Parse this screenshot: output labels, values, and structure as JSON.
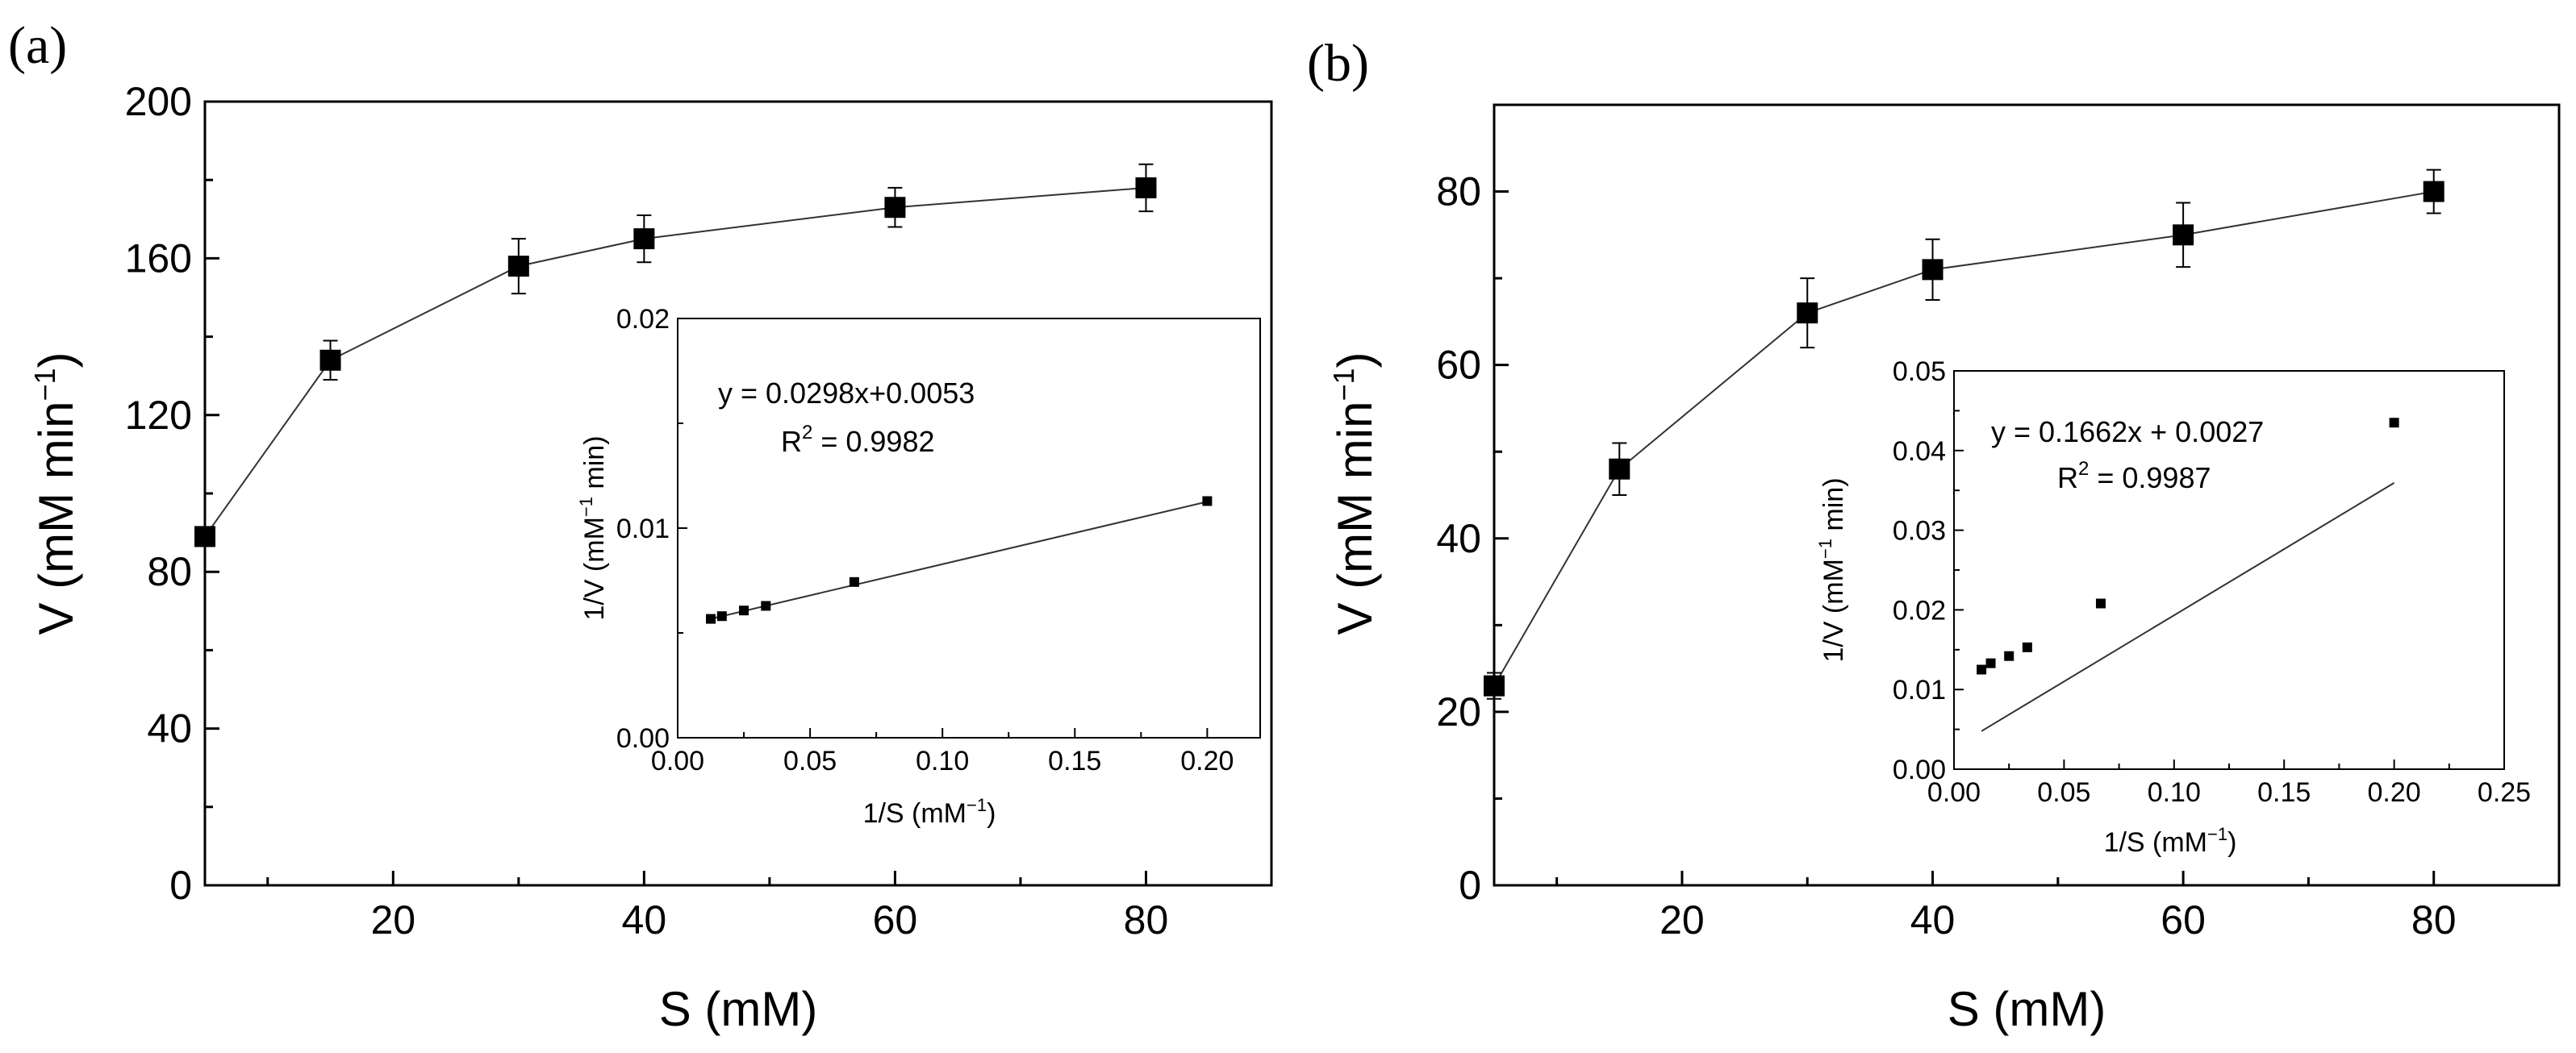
{
  "chart_data": [
    {
      "panel_label": "(a)",
      "type": "line",
      "xlabel": "S (mM)",
      "ylabel_main": "V (mM min",
      "ylabel_sup": "−1",
      "ylabel_close": ")",
      "xlim": [
        5,
        90
      ],
      "ylim": [
        0,
        200
      ],
      "xticks": [
        20,
        40,
        60,
        80
      ],
      "xminor": [
        10,
        30,
        50,
        70,
        90
      ],
      "yticks": [
        0,
        40,
        80,
        120,
        160,
        200
      ],
      "x": [
        5,
        15,
        30,
        40,
        60,
        80
      ],
      "y": [
        89,
        134,
        158,
        165,
        173,
        178
      ],
      "yerr": [
        0,
        5,
        7,
        6,
        5,
        6
      ],
      "inset": {
        "type": "scatter",
        "xlabel_main": "1/S (mM",
        "xlabel_sup": "−1",
        "xlabel_close": ")",
        "ylabel_main": "1/V (mM",
        "ylabel_sup": "−1",
        "ylabel_close": " min)",
        "xlim": [
          0,
          0.22
        ],
        "ylim": [
          0,
          0.02
        ],
        "xticks": [
          "0.00",
          "0.05",
          "0.10",
          "0.15",
          "0.20"
        ],
        "yticks": [
          "0.00",
          "0.01",
          "0.02"
        ],
        "x": [
          0.0125,
          0.0167,
          0.025,
          0.0333,
          0.0667,
          0.2
        ],
        "y": [
          0.00567,
          0.0058,
          0.00607,
          0.00629,
          0.00743,
          0.01129
        ],
        "fit_slope": 0.0298,
        "fit_intercept": 0.0053,
        "equation": "y = 0.0298x+0.0053",
        "r2_main": "R",
        "r2_sup": "2",
        "r2_rest": " = 0.9982"
      }
    },
    {
      "panel_label": "(b)",
      "type": "line",
      "xlabel": "S (mM)",
      "ylabel_main": "V (mM min",
      "ylabel_sup": "−1",
      "ylabel_close": ")",
      "xlim": [
        5,
        90
      ],
      "ylim": [
        0,
        90
      ],
      "xticks": [
        20,
        40,
        60,
        80
      ],
      "xminor": [
        10,
        30,
        50,
        70,
        90
      ],
      "yticks": [
        0,
        20,
        40,
        60,
        80
      ],
      "x": [
        5,
        15,
        30,
        40,
        60,
        80
      ],
      "y": [
        23,
        48,
        66,
        71,
        75,
        80
      ],
      "yerr": [
        1.5,
        3,
        4,
        3.5,
        3.7,
        2.5
      ],
      "inset": {
        "type": "scatter",
        "xlabel_main": "1/S (mM",
        "xlabel_sup": "−1",
        "xlabel_close": ")",
        "ylabel_main": "1/V (mM",
        "ylabel_sup": "−1",
        "ylabel_close": " min)",
        "xlim": [
          0,
          0.25
        ],
        "ylim": [
          0,
          0.05
        ],
        "xticks": [
          "0.00",
          "0.05",
          "0.10",
          "0.15",
          "0.20",
          "0.25"
        ],
        "yticks": [
          "0.00",
          "0.01",
          "0.02",
          "0.03",
          "0.04",
          "0.05"
        ],
        "x": [
          0.0125,
          0.0167,
          0.025,
          0.0333,
          0.0667,
          0.2
        ],
        "y": [
          0.0125,
          0.0133,
          0.0142,
          0.0153,
          0.0208,
          0.0435
        ],
        "fit_slope": 0.1662,
        "fit_intercept": 0.0027,
        "equation": "y = 0.1662x + 0.0027",
        "r2_main": "R",
        "r2_sup": "2",
        "r2_rest": " = 0.9987"
      }
    }
  ]
}
